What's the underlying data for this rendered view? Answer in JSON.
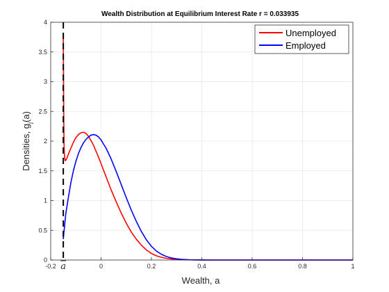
{
  "chart_data": {
    "type": "line",
    "title": "Wealth Distribution at Equilibrium Interest Rate r = 0.033935",
    "xlabel": "Wealth, a",
    "ylabel_main": "Densities, g",
    "ylabel_sub": "j",
    "ylabel_tail": "(a)",
    "xlim": [
      -0.2,
      1
    ],
    "ylim": [
      0,
      4
    ],
    "grid": true,
    "legend_position": "top-right",
    "x_ticks": [
      "-0.2",
      "0",
      "0.2",
      "0.4",
      "0.6",
      "0.8",
      "1"
    ],
    "y_ticks": [
      "0",
      "0.5",
      "1",
      "1.5",
      "2",
      "2.5",
      "3",
      "3.5",
      "4"
    ],
    "borrowing_limit": {
      "x": -0.15,
      "label": "a",
      "style": "dashed",
      "color": "#000000"
    },
    "series": [
      {
        "name": "Unemployed",
        "color": "#ff0000",
        "x": [
          -0.15,
          -0.149,
          -0.148,
          -0.147,
          -0.146,
          -0.144,
          -0.142,
          -0.14,
          -0.135,
          -0.13,
          -0.12,
          -0.11,
          -0.1,
          -0.09,
          -0.08,
          -0.07,
          -0.06,
          -0.05,
          -0.04,
          -0.03,
          -0.02,
          -0.01,
          0,
          0.02,
          0.04,
          0.06,
          0.08,
          0.1,
          0.12,
          0.14,
          0.16,
          0.18,
          0.2,
          0.22,
          0.24,
          0.26,
          0.28,
          0.3,
          0.35,
          0.4,
          0.45,
          0.5,
          0.6,
          0.7,
          0.8,
          0.9,
          1.0
        ],
        "y": [
          3.75,
          2.95,
          2.3,
          1.95,
          1.8,
          1.7,
          1.67,
          1.68,
          1.72,
          1.78,
          1.88,
          1.98,
          2.06,
          2.11,
          2.14,
          2.15,
          2.13,
          2.08,
          2.01,
          1.93,
          1.83,
          1.73,
          1.62,
          1.4,
          1.18,
          0.98,
          0.79,
          0.62,
          0.47,
          0.35,
          0.25,
          0.17,
          0.11,
          0.07,
          0.045,
          0.028,
          0.017,
          0.01,
          0.003,
          0.001,
          0.0,
          0.0,
          0.0,
          0.0,
          0.0,
          0.0,
          0.0
        ]
      },
      {
        "name": "Employed",
        "color": "#0000ff",
        "x": [
          -0.15,
          -0.148,
          -0.146,
          -0.144,
          -0.142,
          -0.14,
          -0.13,
          -0.12,
          -0.11,
          -0.1,
          -0.09,
          -0.08,
          -0.07,
          -0.06,
          -0.05,
          -0.04,
          -0.03,
          -0.02,
          -0.01,
          0,
          0.02,
          0.04,
          0.06,
          0.08,
          0.1,
          0.12,
          0.14,
          0.16,
          0.18,
          0.2,
          0.22,
          0.24,
          0.26,
          0.28,
          0.3,
          0.32,
          0.35,
          0.4,
          0.45,
          0.5,
          0.6,
          0.7,
          0.8,
          0.9,
          1.0
        ],
        "y": [
          0.35,
          0.45,
          0.53,
          0.62,
          0.7,
          0.78,
          1.05,
          1.3,
          1.5,
          1.66,
          1.79,
          1.89,
          1.97,
          2.03,
          2.07,
          2.1,
          2.11,
          2.1,
          2.07,
          2.02,
          1.88,
          1.7,
          1.49,
          1.27,
          1.05,
          0.84,
          0.65,
          0.48,
          0.34,
          0.23,
          0.15,
          0.095,
          0.058,
          0.034,
          0.02,
          0.011,
          0.004,
          0.001,
          0.0,
          0.0,
          0.0,
          0.0,
          0.0,
          0.0,
          0.0
        ]
      }
    ]
  }
}
